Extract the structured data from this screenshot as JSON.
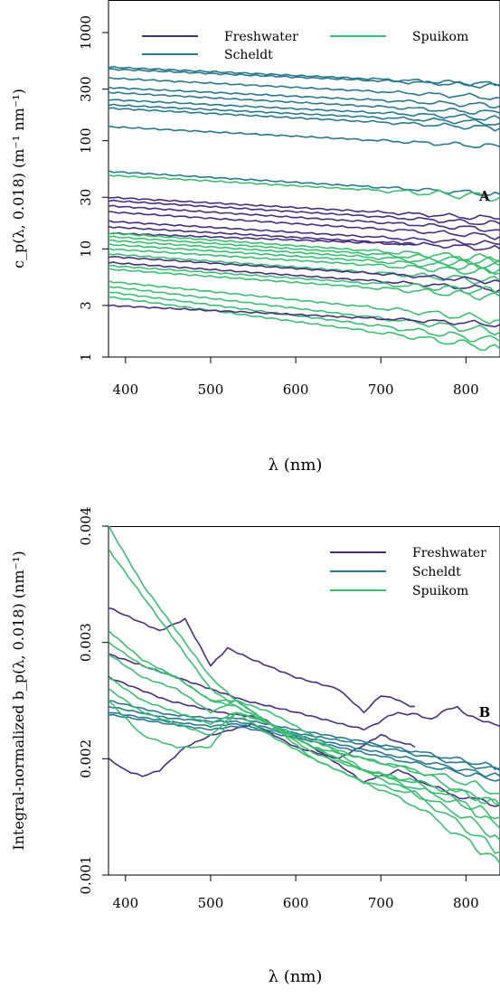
{
  "colors": {
    "Freshwater": "#472f7d",
    "Scheldt": "#2a788e",
    "Spuikom": "#3fbc73"
  },
  "chart_data": [
    {
      "panel": "A",
      "type": "line",
      "title": "",
      "ylabel": "c_p(λ, 0.018) (m⁻¹ nm⁻¹)",
      "xlabel": "λ (nm)",
      "y_scale": "log",
      "xlim": [
        380,
        840
      ],
      "ylim": [
        1,
        2000
      ],
      "x_ticks": [
        "400",
        "500",
        "600",
        "700",
        "800"
      ],
      "y_ticks": [
        "1",
        "3",
        "10",
        "30",
        "100",
        "300",
        "1000"
      ],
      "legend": [
        "Freshwater",
        "Scheldt",
        "Spuikom"
      ],
      "legend_position": "top",
      "grid": false,
      "series": [
        {
          "name": "Scheldt",
          "x": [
            380,
            840
          ],
          "y": [
            480,
            330
          ]
        },
        {
          "name": "Scheldt",
          "x": [
            380,
            840
          ],
          "y": [
            460,
            320
          ]
        },
        {
          "name": "Scheldt",
          "x": [
            380,
            840
          ],
          "y": [
            380,
            250
          ]
        },
        {
          "name": "Scheldt",
          "x": [
            380,
            840
          ],
          "y": [
            310,
            210
          ]
        },
        {
          "name": "Scheldt",
          "x": [
            380,
            840
          ],
          "y": [
            280,
            180
          ]
        },
        {
          "name": "Scheldt",
          "x": [
            380,
            840
          ],
          "y": [
            240,
            160
          ]
        },
        {
          "name": "Scheldt",
          "x": [
            380,
            840
          ],
          "y": [
            215,
            145
          ]
        },
        {
          "name": "Scheldt",
          "x": [
            380,
            840
          ],
          "y": [
            200,
            130
          ]
        },
        {
          "name": "Scheldt",
          "x": [
            380,
            840
          ],
          "y": [
            135,
            88
          ]
        },
        {
          "name": "Scheldt",
          "x": [
            380,
            840
          ],
          "y": [
            52,
            32
          ]
        },
        {
          "name": "Spuikom",
          "x": [
            380,
            840
          ],
          "y": [
            48,
            30
          ]
        },
        {
          "name": "Freshwater",
          "x": [
            380,
            840
          ],
          "y": [
            30,
            19
          ]
        },
        {
          "name": "Freshwater",
          "x": [
            380,
            840
          ],
          "y": [
            28,
            17
          ]
        },
        {
          "name": "Freshwater",
          "x": [
            380,
            840
          ],
          "y": [
            25,
            15
          ]
        },
        {
          "name": "Freshwater",
          "x": [
            380,
            840
          ],
          "y": [
            22,
            13
          ]
        },
        {
          "name": "Freshwater",
          "x": [
            380,
            840
          ],
          "y": [
            18,
            11
          ]
        },
        {
          "name": "Freshwater",
          "x": [
            380,
            840
          ],
          "y": [
            16,
            10
          ]
        },
        {
          "name": "Freshwater",
          "x": [
            380,
            740
          ],
          "y": [
            14,
            11
          ]
        },
        {
          "name": "Spuikom",
          "x": [
            380,
            840
          ],
          "y": [
            14,
            8
          ]
        },
        {
          "name": "Spuikom",
          "x": [
            380,
            840
          ],
          "y": [
            13,
            7.5
          ]
        },
        {
          "name": "Spuikom",
          "x": [
            380,
            840
          ],
          "y": [
            12,
            7
          ]
        },
        {
          "name": "Spuikom",
          "x": [
            380,
            840
          ],
          "y": [
            11,
            6.5
          ]
        },
        {
          "name": "Spuikom",
          "x": [
            380,
            840
          ],
          "y": [
            10,
            6
          ]
        },
        {
          "name": "Spuikom",
          "x": [
            380,
            840
          ],
          "y": [
            9,
            5
          ]
        },
        {
          "name": "Freshwater",
          "x": [
            380,
            840
          ],
          "y": [
            8.5,
            5
          ]
        },
        {
          "name": "Freshwater",
          "x": [
            380,
            840
          ],
          "y": [
            7.5,
            4.2
          ]
        },
        {
          "name": "Spuikom",
          "x": [
            380,
            840
          ],
          "y": [
            7,
            4
          ]
        },
        {
          "name": "Spuikom",
          "x": [
            380,
            840
          ],
          "y": [
            6.5,
            3.6
          ]
        },
        {
          "name": "Spuikom",
          "x": [
            380,
            840
          ],
          "y": [
            5,
            2.2
          ]
        },
        {
          "name": "Spuikom",
          "x": [
            380,
            840
          ],
          "y": [
            4.5,
            1.7
          ]
        },
        {
          "name": "Spuikom",
          "x": [
            380,
            840
          ],
          "y": [
            4,
            1.4
          ]
        },
        {
          "name": "Spuikom",
          "x": [
            380,
            840
          ],
          "y": [
            3.6,
            1.2
          ]
        },
        {
          "name": "Freshwater",
          "x": [
            380,
            840
          ],
          "y": [
            3.0,
            2.0
          ]
        }
      ]
    },
    {
      "panel": "B",
      "type": "line",
      "title": "",
      "ylabel": "Integral-normalized b_p(λ, 0.018) (nm⁻¹)",
      "xlabel": "λ (nm)",
      "y_scale": "linear",
      "xlim": [
        380,
        840
      ],
      "ylim": [
        0.001,
        0.004
      ],
      "x_ticks": [
        "400",
        "500",
        "600",
        "700",
        "800"
      ],
      "y_ticks": [
        "0.001",
        "0.002",
        "0.003",
        "0.004"
      ],
      "legend": [
        "Freshwater",
        "Scheldt",
        "Spuikom"
      ],
      "legend_position": "top-right",
      "grid": false,
      "series": [
        {
          "name": "Freshwater",
          "x": [
            380,
            440,
            470,
            500,
            520,
            550,
            600,
            650,
            680,
            700,
            740
          ],
          "y": [
            0.0033,
            0.0031,
            0.0032,
            0.0028,
            0.00295,
            0.00285,
            0.0027,
            0.0026,
            0.0024,
            0.00255,
            0.00245
          ]
        },
        {
          "name": "Freshwater",
          "x": [
            380,
            460,
            500,
            540,
            600,
            680,
            720,
            760,
            790,
            820,
            840
          ],
          "y": [
            0.0029,
            0.0027,
            0.0026,
            0.0025,
            0.0024,
            0.00225,
            0.0024,
            0.00235,
            0.00245,
            0.0023,
            0.00228
          ]
        },
        {
          "name": "Freshwater",
          "x": [
            380,
            400,
            420,
            440,
            470,
            500,
            550,
            600,
            650,
            700,
            740
          ],
          "y": [
            0.002,
            0.0019,
            0.00185,
            0.0019,
            0.0021,
            0.0022,
            0.0023,
            0.0021,
            0.002,
            0.0022,
            0.0021
          ]
        },
        {
          "name": "Freshwater",
          "x": [
            380,
            450,
            510,
            560,
            620,
            680,
            720,
            780,
            840
          ],
          "y": [
            0.0027,
            0.0025,
            0.0024,
            0.00235,
            0.0021,
            0.0018,
            0.0019,
            0.0017,
            0.0016
          ]
        },
        {
          "name": "Scheldt",
          "x": [
            380,
            450,
            500,
            530,
            600,
            700,
            800,
            840
          ],
          "y": [
            0.00245,
            0.00235,
            0.00232,
            0.00232,
            0.00222,
            0.0021,
            0.00195,
            0.0019
          ]
        },
        {
          "name": "Scheldt",
          "x": [
            380,
            450,
            500,
            530,
            600,
            700,
            800,
            840
          ],
          "y": [
            0.0024,
            0.00232,
            0.00228,
            0.0023,
            0.0022,
            0.00205,
            0.0019,
            0.00185
          ]
        },
        {
          "name": "Scheldt",
          "x": [
            380,
            450,
            500,
            530,
            600,
            700,
            800,
            840
          ],
          "y": [
            0.00238,
            0.0023,
            0.00225,
            0.00228,
            0.00218,
            0.00202,
            0.00187,
            0.00182
          ]
        },
        {
          "name": "Scheldt",
          "x": [
            380,
            450,
            500,
            530,
            600,
            700,
            800,
            840
          ],
          "y": [
            0.0025,
            0.00238,
            0.00235,
            0.00235,
            0.00225,
            0.00212,
            0.00198,
            0.00192
          ]
        },
        {
          "name": "Spuikom",
          "x": [
            380,
            420,
            460,
            500,
            530,
            570,
            620,
            680,
            740,
            800,
            840
          ],
          "y": [
            0.004,
            0.0035,
            0.0031,
            0.0027,
            0.0025,
            0.0023,
            0.002,
            0.0018,
            0.0016,
            0.0013,
            0.0011
          ]
        },
        {
          "name": "Spuikom",
          "x": [
            380,
            420,
            460,
            500,
            530,
            570,
            620,
            680,
            740,
            800,
            840
          ],
          "y": [
            0.0038,
            0.0034,
            0.003,
            0.0026,
            0.00245,
            0.0023,
            0.00205,
            0.0019,
            0.0017,
            0.0015,
            0.0013
          ]
        },
        {
          "name": "Spuikom",
          "x": [
            380,
            420,
            460,
            500,
            530,
            570,
            620,
            680,
            740,
            800,
            840
          ],
          "y": [
            0.0031,
            0.00285,
            0.0027,
            0.0025,
            0.00245,
            0.0023,
            0.0021,
            0.0019,
            0.0018,
            0.0016,
            0.0015
          ]
        },
        {
          "name": "Spuikom",
          "x": [
            380,
            420,
            460,
            500,
            530,
            570,
            620,
            680,
            740,
            800,
            840
          ],
          "y": [
            0.0029,
            0.0027,
            0.0026,
            0.0024,
            0.0025,
            0.0023,
            0.0021,
            0.0019,
            0.0018,
            0.0017,
            0.0016
          ]
        },
        {
          "name": "Spuikom",
          "x": [
            380,
            420,
            460,
            500,
            530,
            570,
            620,
            680,
            740,
            800,
            840
          ],
          "y": [
            0.0027,
            0.0025,
            0.0024,
            0.0023,
            0.0024,
            0.0023,
            0.0021,
            0.002,
            0.0019,
            0.0017,
            0.0016
          ]
        },
        {
          "name": "Spuikom",
          "x": [
            380,
            420,
            460,
            500,
            530,
            570,
            620,
            680,
            740,
            800,
            840
          ],
          "y": [
            0.0025,
            0.0022,
            0.0021,
            0.0021,
            0.0024,
            0.0023,
            0.00215,
            0.002,
            0.0019,
            0.0018,
            0.0017
          ]
        },
        {
          "name": "Spuikom",
          "x": [
            380,
            420,
            460,
            500,
            530,
            570,
            620,
            680,
            740,
            800,
            840
          ],
          "y": [
            0.0026,
            0.0024,
            0.0023,
            0.0022,
            0.0024,
            0.0022,
            0.002,
            0.0018,
            0.0017,
            0.0014,
            0.0012
          ]
        },
        {
          "name": "Spuikom",
          "x": [
            380,
            420,
            460,
            500,
            530,
            570,
            620,
            680,
            740,
            800,
            840
          ],
          "y": [
            0.003,
            0.0028,
            0.0027,
            0.0025,
            0.0025,
            0.0024,
            0.0022,
            0.0019,
            0.00175,
            0.0016,
            0.0014
          ]
        }
      ]
    }
  ]
}
